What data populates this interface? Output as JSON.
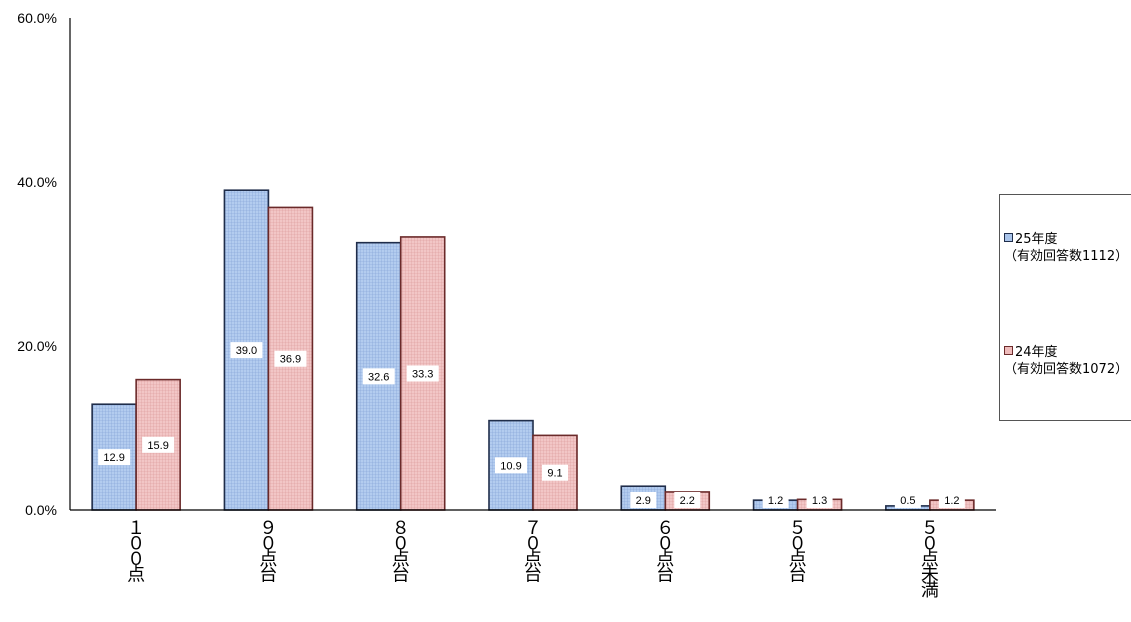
{
  "chart_data": {
    "type": "bar",
    "categories": [
      "１００点",
      "９０点台",
      "８０点台",
      "７０点台",
      "６０点台",
      "５０点台",
      "５０点未満"
    ],
    "series": [
      {
        "name": "25年度（有効回答数1112）",
        "values": [
          12.9,
          39.0,
          32.6,
          10.9,
          2.9,
          1.2,
          0.5
        ],
        "labels": [
          "12.9",
          "39.0",
          "32.6",
          "10.9",
          "2.9",
          "1.2",
          "0.5"
        ],
        "fill": "#a9c4ea",
        "stroke": "#1f2d4a"
      },
      {
        "name": "24年度（有効回答数1072）",
        "values": [
          15.9,
          36.9,
          33.3,
          9.1,
          2.2,
          1.3,
          1.2
        ],
        "labels": [
          "15.9",
          "36.9",
          "33.3",
          "9.1",
          "2.2",
          "1.3",
          "1.2"
        ],
        "fill": "#eebbbb",
        "stroke": "#6b2a2a"
      }
    ],
    "yticks": [
      "0.0%",
      "20.0%",
      "40.0%",
      "60.0%"
    ],
    "ylim": [
      0,
      60
    ],
    "grid": false,
    "legend": "right"
  },
  "legend": {
    "items": [
      {
        "title": "25年度",
        "sub": "（有効回答数1112）",
        "color": "#a9c4ea",
        "border": "#1f2d4a"
      },
      {
        "title": "24年度",
        "sub": "（有効回答数1072）",
        "color": "#eebbbb",
        "border": "#6b2a2a"
      }
    ]
  }
}
